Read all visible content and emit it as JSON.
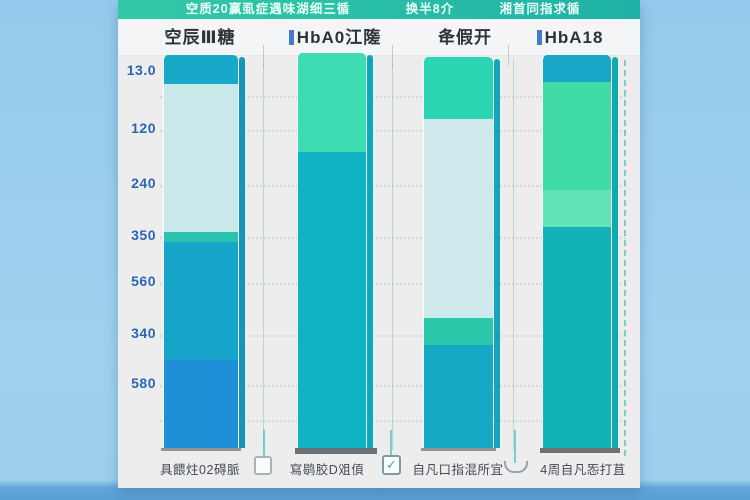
{
  "header": {
    "title_left": "空质20赢虱症遇味湖细三循",
    "title_mid": "换半8介",
    "title_right": "湘首同指求循"
  },
  "columns": [
    {
      "label": "空辰Ⅲ糖"
    },
    {
      "label": "HbA0江隓"
    },
    {
      "label": "夅假开"
    },
    {
      "label": "HbA18"
    }
  ],
  "y_axis": {
    "tick_labels": [
      "13.0",
      "120",
      "240",
      "350",
      "560",
      "340",
      "580"
    ]
  },
  "footer": {
    "labels": [
      "具餵炷02碍脈",
      "寫鹖㬵D㸖㑯",
      "自凡口指混所宜",
      "4周自凡㤅打苴"
    ],
    "check_glyph": "✓"
  },
  "colors": {
    "background_blue": "#9bcfee",
    "bottom_band_blue": "#58a0d5",
    "header_teal": "#29c0a5",
    "panel_bg": "#ededee",
    "axis_label_blue": "#2b66b4",
    "column_text": "#2e3239",
    "footer_text": "#454b52",
    "check_teal": "#2ab5a5",
    "tick_mark_blue": "#4a78c8"
  },
  "chart_data": {
    "type": "bar",
    "stacked": true,
    "grid": "faint dotted horizontal",
    "legend_position": "none",
    "categories": [
      "空辰Ⅲ糖",
      "HbA0江隓",
      "夅假开",
      "HbA18"
    ],
    "y_tick_labels": [
      "13.0",
      "120",
      "240",
      "350",
      "560",
      "340",
      "580"
    ],
    "x_tick_labels": [
      "具餵炷02碍脈",
      "寫鹖㬵D㸖㑯",
      "自凡口指混所宜",
      "4周自凡㤅打苴"
    ],
    "bars": [
      {
        "category": "空辰Ⅲ糖",
        "edge_color": "#1795bb",
        "baseline_color": "#8f959b",
        "segments": [
          {
            "color": "#18a8c8",
            "height_pct": 7.4
          },
          {
            "color": "#c9e8ea",
            "height_pct": 37.6
          },
          {
            "color": "#2ac3ae",
            "height_pct": 2.6
          },
          {
            "color": "#16a4c9",
            "height_pct": 30.0
          },
          {
            "color": "#1e8ed6",
            "height_pct": 22.4
          }
        ]
      },
      {
        "category": "HbA0江隓",
        "edge_color": "#0da9b8",
        "baseline_color": "#6d7277",
        "segments": [
          {
            "color": "#3edcb2",
            "height_pct": 25.1
          },
          {
            "color": "#10b3c1",
            "height_pct": 74.9
          }
        ]
      },
      {
        "category": "夅假开",
        "edge_color": "#14a5bd",
        "baseline_color": "#8f959b",
        "segments": [
          {
            "color": "#2bd5b4",
            "height_pct": 15.9
          },
          {
            "color": "#cde9ec",
            "height_pct": 50.9
          },
          {
            "color": "#2bc7ab",
            "height_pct": 6.9
          },
          {
            "color": "#16a9c6",
            "height_pct": 26.3
          }
        ]
      },
      {
        "category": "HbA18",
        "edge_color": "#0faab0",
        "baseline_color": "#6d7277",
        "segments": [
          {
            "color": "#18a6c7",
            "height_pct": 6.9
          },
          {
            "color": "#41dba7",
            "height_pct": 27.5
          },
          {
            "color": "#63e4b6",
            "height_pct": 9.4
          },
          {
            "color": "#12b3b8",
            "height_pct": 56.2
          }
        ]
      }
    ]
  }
}
